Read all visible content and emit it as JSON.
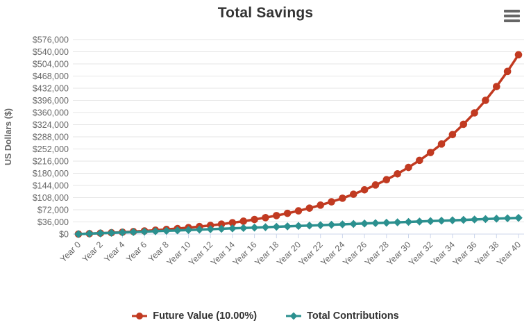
{
  "header": {
    "title": "Total Savings",
    "menu_icon": "hamburger-menu"
  },
  "colors": {
    "title_text": "#333333",
    "axis_label_text": "#666666",
    "gridline": "#e6e6e6",
    "axis_line": "#ccd6eb",
    "legend_text": "#333333",
    "menu_icon": "#666666",
    "background": "#ffffff"
  },
  "chart_data": {
    "type": "line",
    "title": "Total Savings",
    "xlabel": "",
    "ylabel": "US Dollars ($)",
    "x_tick_prefix": "Year ",
    "x_tick_interval": 2,
    "x_label_rotation": -45,
    "ylim": [
      0,
      576000
    ],
    "y_tick_step": 36000,
    "y_tick_format": "$#,###",
    "grid": "horizontal-only",
    "legend_position": "bottom-center",
    "x": [
      0,
      1,
      2,
      3,
      4,
      5,
      6,
      7,
      8,
      9,
      10,
      11,
      12,
      13,
      14,
      15,
      16,
      17,
      18,
      19,
      20,
      21,
      22,
      23,
      24,
      25,
      26,
      27,
      28,
      29,
      30,
      31,
      32,
      33,
      34,
      35,
      36,
      37,
      38,
      39,
      40
    ],
    "series": [
      {
        "name": "Future Value (10.00%)",
        "color": "#c13a21",
        "marker": "circle",
        "values": [
          0,
          1200,
          2520,
          3972,
          5569,
          7326,
          9259,
          11385,
          13723,
          16295,
          19125,
          22237,
          25661,
          29427,
          33570,
          38127,
          43140,
          48654,
          54719,
          61391,
          68730,
          76803,
          85683,
          95452,
          106197,
          118016,
          131018,
          145320,
          161052,
          178357,
          197393,
          218332,
          241365,
          266702,
          294572,
          325229,
          358952,
          396047,
          436852,
          481737,
          531111
        ]
      },
      {
        "name": "Total Contributions",
        "color": "#2b908f",
        "marker": "diamond",
        "values": [
          0,
          1200,
          2400,
          3600,
          4800,
          6000,
          7200,
          8400,
          9600,
          10800,
          12000,
          13200,
          14400,
          15600,
          16800,
          18000,
          19200,
          20400,
          21600,
          22800,
          24000,
          25200,
          26400,
          27600,
          28800,
          30000,
          31200,
          32400,
          33600,
          34800,
          36000,
          37200,
          38400,
          39600,
          40800,
          42000,
          43200,
          44400,
          45600,
          46800,
          48000
        ]
      }
    ]
  }
}
